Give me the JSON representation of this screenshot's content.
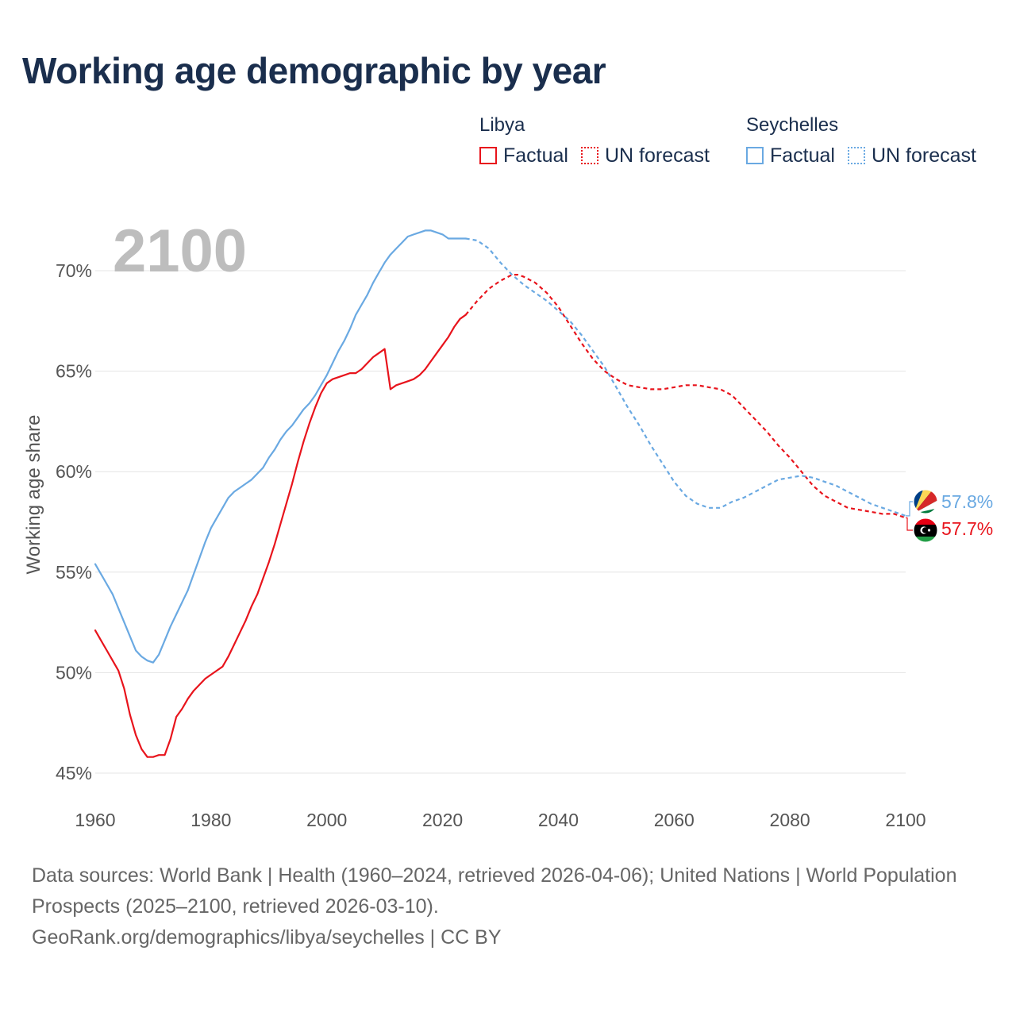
{
  "title": "Working age demographic by year",
  "legend": {
    "groups": [
      {
        "name": "Libya",
        "factual_label": "Factual",
        "forecast_label": "UN forecast",
        "color": "#e8141c"
      },
      {
        "name": "Seychelles",
        "factual_label": "Factual",
        "forecast_label": "UN forecast",
        "color": "#6aa9e2"
      }
    ]
  },
  "big_year": "2100",
  "end_labels": {
    "seychelles": "57.8%",
    "libya": "57.7%"
  },
  "footer": {
    "sources": "Data sources: World Bank | Health (1960–2024, retrieved 2026-04-06); United Nations | World Population Prospects (2025–2100, retrieved 2026-03-10).",
    "credit": "GeoRank.org/demographics/libya/seychelles | CC BY"
  },
  "chart_data": {
    "type": "line",
    "title": "Working age demographic by year",
    "xlabel": "",
    "ylabel": "Working age share",
    "xlim": [
      1960,
      2100
    ],
    "ylim": [
      45,
      72
    ],
    "x_ticks": [
      1960,
      1980,
      2000,
      2020,
      2040,
      2060,
      2080,
      2100
    ],
    "y_ticks": [
      45,
      50,
      55,
      60,
      65,
      70
    ],
    "y_tick_labels": [
      "45%",
      "50%",
      "55%",
      "60%",
      "65%",
      "70%"
    ],
    "x_tick_labels": [
      "1960",
      "1980",
      "2000",
      "2020",
      "2040",
      "2060",
      "2080",
      "2100"
    ],
    "series": [
      {
        "name": "Libya",
        "kind": "factual",
        "color": "#e8141c",
        "x": [
          1960,
          1961,
          1962,
          1963,
          1964,
          1965,
          1966,
          1967,
          1968,
          1969,
          1970,
          1971,
          1972,
          1973,
          1974,
          1975,
          1976,
          1977,
          1978,
          1979,
          1980,
          1981,
          1982,
          1983,
          1984,
          1985,
          1986,
          1987,
          1988,
          1989,
          1990,
          1991,
          1992,
          1993,
          1994,
          1995,
          1996,
          1997,
          1998,
          1999,
          2000,
          2001,
          2002,
          2003,
          2004,
          2005,
          2006,
          2007,
          2008,
          2009,
          2010,
          2011,
          2012,
          2013,
          2014,
          2015,
          2016,
          2017,
          2018,
          2019,
          2020,
          2021,
          2022,
          2023,
          2024
        ],
        "y": [
          52.1,
          51.6,
          51.1,
          50.6,
          50.1,
          49.2,
          47.9,
          46.9,
          46.2,
          45.8,
          45.8,
          45.9,
          45.9,
          46.7,
          47.8,
          48.2,
          48.7,
          49.1,
          49.4,
          49.7,
          49.9,
          50.1,
          50.3,
          50.8,
          51.4,
          52.0,
          52.6,
          53.3,
          53.9,
          54.7,
          55.5,
          56.4,
          57.4,
          58.4,
          59.4,
          60.5,
          61.5,
          62.4,
          63.2,
          63.9,
          64.4,
          64.6,
          64.7,
          64.8,
          64.9,
          64.9,
          65.1,
          65.4,
          65.7,
          65.9,
          66.1,
          64.1,
          64.3,
          64.4,
          64.5,
          64.6,
          64.8,
          65.1,
          65.5,
          65.9,
          66.3,
          66.7,
          67.2,
          67.6,
          67.8
        ]
      },
      {
        "name": "Libya",
        "kind": "forecast",
        "color": "#e8141c",
        "x": [
          2024,
          2026,
          2028,
          2030,
          2032,
          2033,
          2034,
          2036,
          2038,
          2040,
          2042,
          2044,
          2046,
          2048,
          2050,
          2052,
          2054,
          2056,
          2058,
          2060,
          2062,
          2064,
          2066,
          2068,
          2070,
          2072,
          2074,
          2076,
          2078,
          2080,
          2082,
          2084,
          2086,
          2088,
          2090,
          2092,
          2094,
          2096,
          2098,
          2100
        ],
        "y": [
          67.8,
          68.5,
          69.1,
          69.5,
          69.8,
          69.8,
          69.7,
          69.4,
          68.9,
          68.2,
          67.3,
          66.4,
          65.6,
          65.0,
          64.6,
          64.3,
          64.2,
          64.1,
          64.1,
          64.2,
          64.3,
          64.3,
          64.2,
          64.1,
          63.8,
          63.2,
          62.6,
          62.0,
          61.3,
          60.7,
          60.0,
          59.3,
          58.8,
          58.5,
          58.2,
          58.1,
          58.0,
          57.9,
          57.9,
          57.7
        ]
      },
      {
        "name": "Seychelles",
        "kind": "factual",
        "color": "#6aa9e2",
        "x": [
          1960,
          1961,
          1962,
          1963,
          1964,
          1965,
          1966,
          1967,
          1968,
          1969,
          1970,
          1971,
          1972,
          1973,
          1974,
          1975,
          1976,
          1977,
          1978,
          1979,
          1980,
          1981,
          1982,
          1983,
          1984,
          1985,
          1986,
          1987,
          1988,
          1989,
          1990,
          1991,
          1992,
          1993,
          1994,
          1995,
          1996,
          1997,
          1998,
          1999,
          2000,
          2001,
          2002,
          2003,
          2004,
          2005,
          2006,
          2007,
          2008,
          2009,
          2010,
          2011,
          2012,
          2013,
          2014,
          2015,
          2016,
          2017,
          2018,
          2019,
          2020,
          2021,
          2022,
          2023,
          2024
        ],
        "y": [
          55.4,
          54.9,
          54.4,
          53.9,
          53.2,
          52.5,
          51.8,
          51.1,
          50.8,
          50.6,
          50.5,
          50.9,
          51.6,
          52.3,
          52.9,
          53.5,
          54.1,
          54.9,
          55.7,
          56.5,
          57.2,
          57.7,
          58.2,
          58.7,
          59.0,
          59.2,
          59.4,
          59.6,
          59.9,
          60.2,
          60.7,
          61.1,
          61.6,
          62.0,
          62.3,
          62.7,
          63.1,
          63.4,
          63.8,
          64.3,
          64.8,
          65.4,
          66.0,
          66.5,
          67.1,
          67.8,
          68.3,
          68.8,
          69.4,
          69.9,
          70.4,
          70.8,
          71.1,
          71.4,
          71.7,
          71.8,
          71.9,
          72.0,
          72.0,
          71.9,
          71.8,
          71.6,
          71.6,
          71.6,
          71.6
        ]
      },
      {
        "name": "Seychelles",
        "kind": "forecast",
        "color": "#6aa9e2",
        "x": [
          2024,
          2026,
          2028,
          2030,
          2032,
          2034,
          2036,
          2038,
          2040,
          2042,
          2044,
          2046,
          2048,
          2050,
          2052,
          2054,
          2056,
          2058,
          2060,
          2062,
          2064,
          2066,
          2068,
          2070,
          2072,
          2074,
          2076,
          2078,
          2080,
          2082,
          2084,
          2086,
          2088,
          2090,
          2092,
          2094,
          2096,
          2098,
          2100
        ],
        "y": [
          71.6,
          71.5,
          71.1,
          70.4,
          69.8,
          69.3,
          68.9,
          68.5,
          68.0,
          67.5,
          66.8,
          66.0,
          65.2,
          64.2,
          63.2,
          62.3,
          61.3,
          60.4,
          59.5,
          58.8,
          58.4,
          58.2,
          58.2,
          58.5,
          58.7,
          59.0,
          59.3,
          59.6,
          59.7,
          59.8,
          59.7,
          59.5,
          59.3,
          59.0,
          58.7,
          58.4,
          58.2,
          58.0,
          57.8
        ]
      }
    ]
  }
}
